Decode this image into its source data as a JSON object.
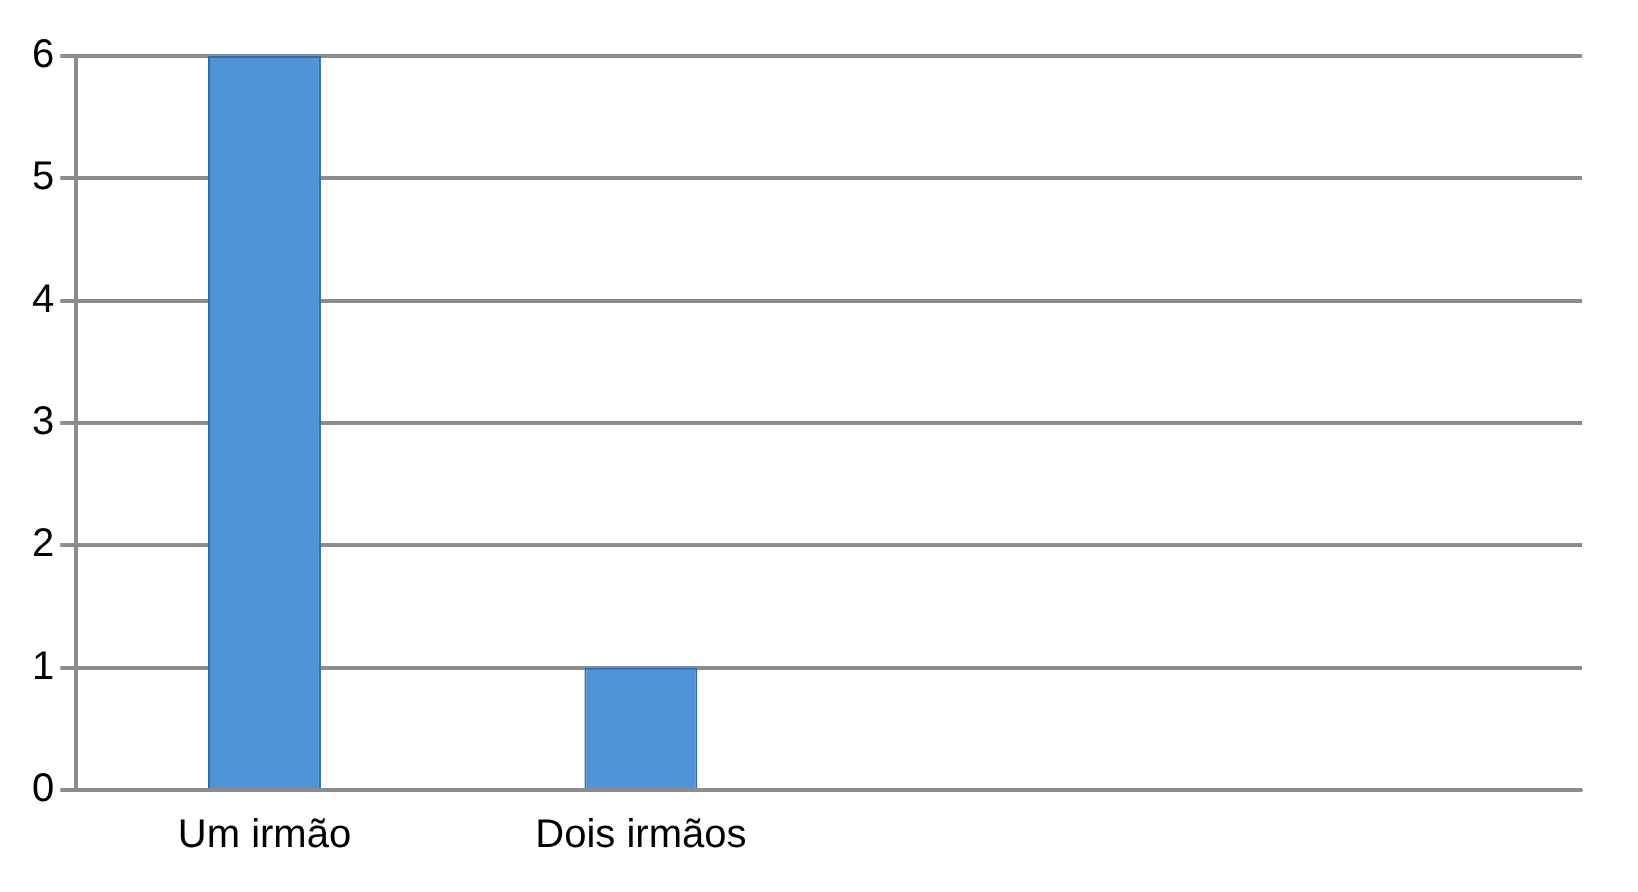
{
  "chart_data": {
    "type": "bar",
    "categories": [
      "Um irmão",
      "Dois irmãos",
      null,
      null
    ],
    "values": [
      6,
      1,
      null,
      null
    ],
    "color": "#4f94d8",
    "ylim": [
      0,
      6
    ],
    "yticks": [
      0,
      1,
      2,
      3,
      4,
      5,
      6
    ],
    "grid": "y",
    "legend": false
  }
}
